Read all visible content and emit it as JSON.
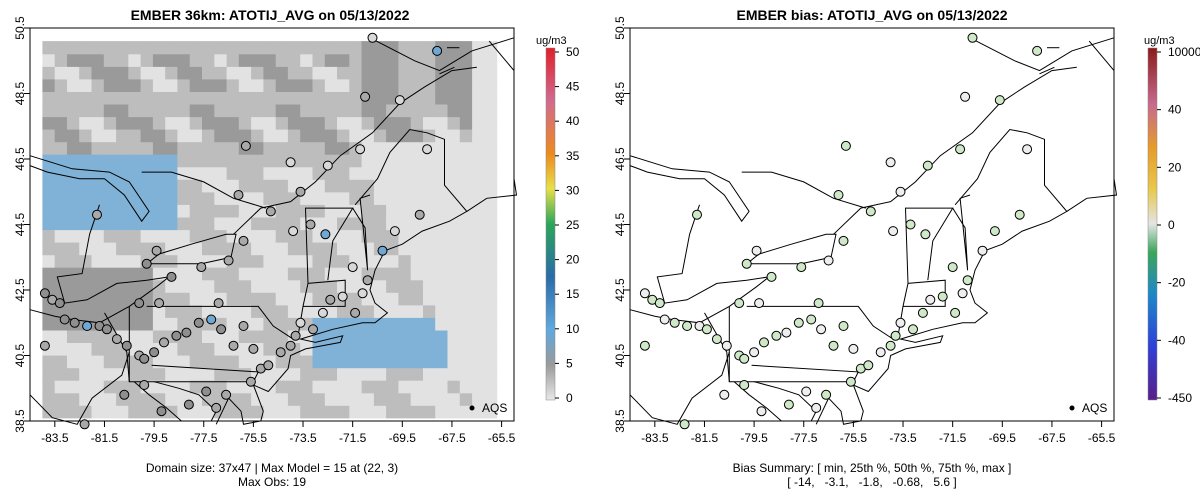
{
  "left": {
    "title": "EMBER 36km: ATOTIJ_AVG on 05/13/2022",
    "footer_line1": "Domain size: 37x47 | Max Model = 15 at (22, 3)",
    "footer_line2": "Max Obs: 19",
    "legend_label": "AQS",
    "colorbar_unit": "ug/m3",
    "colorbar_ticks": [
      "50",
      "45",
      "40",
      "35",
      "30",
      "25",
      "20",
      "15",
      "10",
      "5",
      "0"
    ]
  },
  "right": {
    "title": "EMBER bias: ATOTIJ_AVG on 05/13/2022",
    "footer_line1": "Bias Summary: [ min, 25th %, 50th %, 75th %, max ]",
    "footer_line2": "[ -14,   -3.1,   -1.8,   -0.68,   5.6 ]",
    "legend_label": "AQS",
    "colorbar_unit": "ug/m3",
    "colorbar_ticks": [
      "10000",
      "40",
      "20",
      "0",
      "-20",
      "-40",
      "-450"
    ]
  },
  "colors": {
    "model_light": "#e2e2e2",
    "model_mid": "#bdbdbd",
    "model_dark": "#9a9a9a",
    "model_blue": "#7fb2d6",
    "obs_gray": "#a8a8a8",
    "bias_green": "#cfe8c8",
    "bias_white": "#eeeeee"
  },
  "chart_data": [
    {
      "type": "scatter",
      "title": "EMBER 36km: ATOTIJ_AVG on 05/13/2022",
      "xlabel": "",
      "ylabel": "",
      "xlim": [
        -84.5,
        -65.0
      ],
      "ylim": [
        38.5,
        50.5
      ],
      "x_ticks": [
        "-83.5",
        "-81.5",
        "-79.5",
        "-77.5",
        "-75.5",
        "-73.5",
        "-71.5",
        "-69.5",
        "-67.5",
        "-65.5"
      ],
      "y_ticks": [
        "38.5",
        "40.5",
        "42.5",
        "44.5",
        "46.5",
        "48.5",
        "50.5"
      ],
      "colorbar": {
        "unit": "ug/m3",
        "min": 0,
        "max": 50
      },
      "points": [
        {
          "lon": -83.9,
          "lat": 42.4,
          "v": 8
        },
        {
          "lon": -83.6,
          "lat": 42.2,
          "v": 6
        },
        {
          "lon": -83.3,
          "lat": 42.1,
          "v": 7
        },
        {
          "lon": -83.1,
          "lat": 41.6,
          "v": 9
        },
        {
          "lon": -82.7,
          "lat": 41.5,
          "v": 8
        },
        {
          "lon": -82.2,
          "lat": 41.4,
          "v": 10
        },
        {
          "lon": -81.7,
          "lat": 41.4,
          "v": 7
        },
        {
          "lon": -81.4,
          "lat": 41.3,
          "v": 8
        },
        {
          "lon": -81.0,
          "lat": 41.0,
          "v": 6
        },
        {
          "lon": -80.6,
          "lat": 40.8,
          "v": 7
        },
        {
          "lon": -80.1,
          "lat": 40.5,
          "v": 6
        },
        {
          "lon": -79.9,
          "lat": 40.4,
          "v": 8
        },
        {
          "lon": -79.5,
          "lat": 40.6,
          "v": 7
        },
        {
          "lon": -79.1,
          "lat": 40.9,
          "v": 6
        },
        {
          "lon": -78.6,
          "lat": 41.1,
          "v": 9
        },
        {
          "lon": -78.2,
          "lat": 41.2,
          "v": 8
        },
        {
          "lon": -77.7,
          "lat": 41.5,
          "v": 7
        },
        {
          "lon": -77.2,
          "lat": 41.6,
          "v": 11
        },
        {
          "lon": -76.8,
          "lat": 41.3,
          "v": 8
        },
        {
          "lon": -76.3,
          "lat": 40.8,
          "v": 6
        },
        {
          "lon": -75.9,
          "lat": 41.4,
          "v": 5
        },
        {
          "lon": -75.5,
          "lat": 40.7,
          "v": 5
        },
        {
          "lon": -75.2,
          "lat": 40.1,
          "v": 6
        },
        {
          "lon": -74.9,
          "lat": 40.2,
          "v": 5
        },
        {
          "lon": -74.4,
          "lat": 40.6,
          "v": 4
        },
        {
          "lon": -74.0,
          "lat": 40.8,
          "v": 5
        },
        {
          "lon": -73.8,
          "lat": 41.1,
          "v": 4
        },
        {
          "lon": -73.6,
          "lat": 41.5,
          "v": 3
        },
        {
          "lon": -73.1,
          "lat": 41.3,
          "v": 4
        },
        {
          "lon": -72.7,
          "lat": 41.8,
          "v": 3
        },
        {
          "lon": -72.4,
          "lat": 42.2,
          "v": 4
        },
        {
          "lon": -71.9,
          "lat": 42.3,
          "v": 3
        },
        {
          "lon": -71.4,
          "lat": 41.8,
          "v": 4
        },
        {
          "lon": -71.1,
          "lat": 42.4,
          "v": 3
        },
        {
          "lon": -70.9,
          "lat": 42.8,
          "v": 4
        },
        {
          "lon": -71.5,
          "lat": 43.2,
          "v": 3
        },
        {
          "lon": -70.3,
          "lat": 43.7,
          "v": 12
        },
        {
          "lon": -69.8,
          "lat": 44.3,
          "v": 3
        },
        {
          "lon": -68.8,
          "lat": 44.8,
          "v": 4
        },
        {
          "lon": -68.5,
          "lat": 46.8,
          "v": 2
        },
        {
          "lon": -72.6,
          "lat": 44.2,
          "v": 14
        },
        {
          "lon": -73.2,
          "lat": 44.5,
          "v": 4
        },
        {
          "lon": -73.9,
          "lat": 44.3,
          "v": 3
        },
        {
          "lon": -74.8,
          "lat": 44.9,
          "v": 5
        },
        {
          "lon": -75.9,
          "lat": 44.0,
          "v": 4
        },
        {
          "lon": -76.5,
          "lat": 43.4,
          "v": 5
        },
        {
          "lon": -77.6,
          "lat": 43.2,
          "v": 6
        },
        {
          "lon": -78.8,
          "lat": 42.9,
          "v": 7
        },
        {
          "lon": -79.3,
          "lat": 42.1,
          "v": 6
        },
        {
          "lon": -80.1,
          "lat": 42.1,
          "v": 8
        },
        {
          "lon": -81.8,
          "lat": 44.8,
          "v": 5
        },
        {
          "lon": -79.4,
          "lat": 43.7,
          "v": 6
        },
        {
          "lon": -79.8,
          "lat": 43.3,
          "v": 7
        },
        {
          "lon": -76.1,
          "lat": 45.4,
          "v": 5
        },
        {
          "lon": -73.6,
          "lat": 45.5,
          "v": 4
        },
        {
          "lon": -71.2,
          "lat": 46.8,
          "v": 3
        },
        {
          "lon": -72.5,
          "lat": 46.3,
          "v": 2
        },
        {
          "lon": -74.0,
          "lat": 46.4,
          "v": 3
        },
        {
          "lon": -75.8,
          "lat": 46.9,
          "v": 4
        },
        {
          "lon": -69.6,
          "lat": 48.3,
          "v": 3
        },
        {
          "lon": -71.0,
          "lat": 48.4,
          "v": 4
        },
        {
          "lon": -68.1,
          "lat": 49.8,
          "v": 14
        },
        {
          "lon": -70.7,
          "lat": 50.2,
          "v": 2
        },
        {
          "lon": -77.0,
          "lat": 38.9,
          "v": 6
        },
        {
          "lon": -76.6,
          "lat": 39.3,
          "v": 5
        },
        {
          "lon": -75.6,
          "lat": 39.7,
          "v": 4
        },
        {
          "lon": -77.4,
          "lat": 39.4,
          "v": 7
        },
        {
          "lon": -78.1,
          "lat": 39.0,
          "v": 8
        },
        {
          "lon": -79.9,
          "lat": 39.6,
          "v": 6
        },
        {
          "lon": -80.7,
          "lat": 39.3,
          "v": 7
        },
        {
          "lon": -82.3,
          "lat": 38.4,
          "v": 5
        },
        {
          "lon": -83.9,
          "lat": 40.8,
          "v": 6
        },
        {
          "lon": -79.2,
          "lat": 38.8,
          "v": 7
        },
        {
          "lon": -76.9,
          "lat": 42.1,
          "v": 6
        }
      ]
    },
    {
      "type": "scatter",
      "title": "EMBER bias: ATOTIJ_AVG on 05/13/2022",
      "xlabel": "",
      "ylabel": "",
      "xlim": [
        -84.5,
        -65.0
      ],
      "ylim": [
        38.5,
        50.5
      ],
      "x_ticks": [
        "-83.5",
        "-81.5",
        "-79.5",
        "-77.5",
        "-75.5",
        "-73.5",
        "-71.5",
        "-69.5",
        "-67.5",
        "-65.5"
      ],
      "y_ticks": [
        "38.5",
        "40.5",
        "42.5",
        "44.5",
        "46.5",
        "48.5",
        "50.5"
      ],
      "colorbar": {
        "unit": "ug/m3",
        "ticks": [
          10000,
          40,
          20,
          0,
          -20,
          -40,
          -450
        ]
      },
      "summary": {
        "min": -14,
        "p25": -3.1,
        "p50": -1.8,
        "p75": -0.68,
        "max": 5.6
      }
    }
  ]
}
